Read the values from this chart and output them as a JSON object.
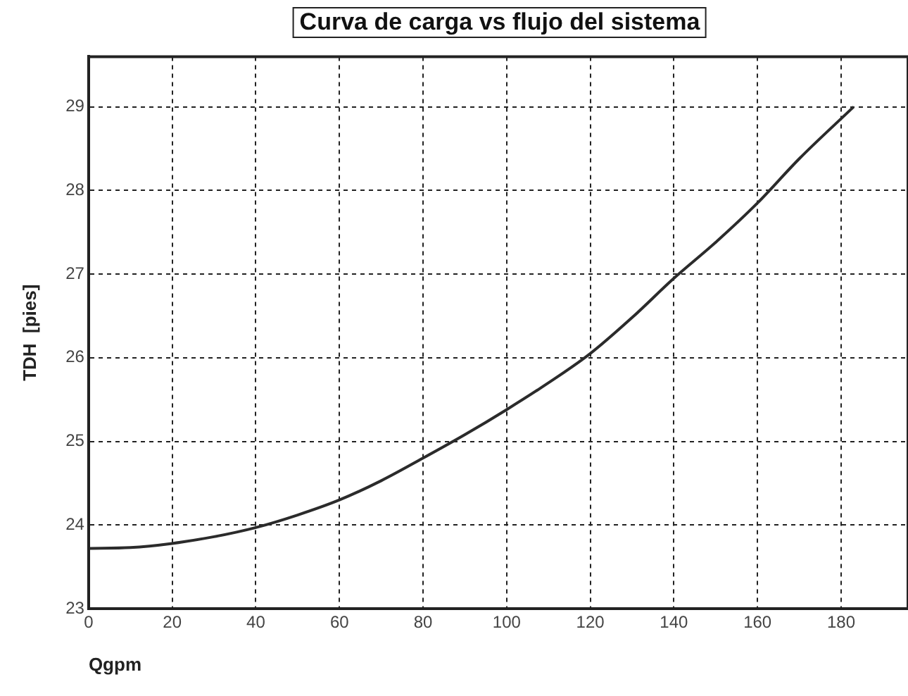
{
  "chart_data": {
    "type": "line",
    "title": "Curva de carga vs flujo del sistema",
    "xlabel": "Qgpm",
    "ylabel": "TDH  [pies]",
    "x": [
      0,
      10,
      20,
      30,
      40,
      50,
      60,
      70,
      80,
      90,
      100,
      110,
      120,
      130,
      140,
      150,
      160,
      170,
      183
    ],
    "series": [
      {
        "color": "#2b2b2b",
        "values": [
          23.72,
          23.73,
          23.78,
          23.86,
          23.97,
          24.12,
          24.3,
          24.53,
          24.8,
          25.08,
          25.38,
          25.7,
          26.05,
          26.48,
          26.95,
          27.38,
          27.85,
          28.38,
          29.0
        ]
      }
    ],
    "xlim": [
      0,
      196
    ],
    "xticks": [
      0,
      20,
      40,
      60,
      80,
      100,
      120,
      140,
      160,
      180
    ],
    "ylim": [
      23,
      29.6
    ],
    "yticks": [
      23,
      24,
      25,
      26,
      27,
      28,
      29
    ],
    "grid": true,
    "legend": false,
    "marker": "none",
    "line_style": "solid"
  }
}
